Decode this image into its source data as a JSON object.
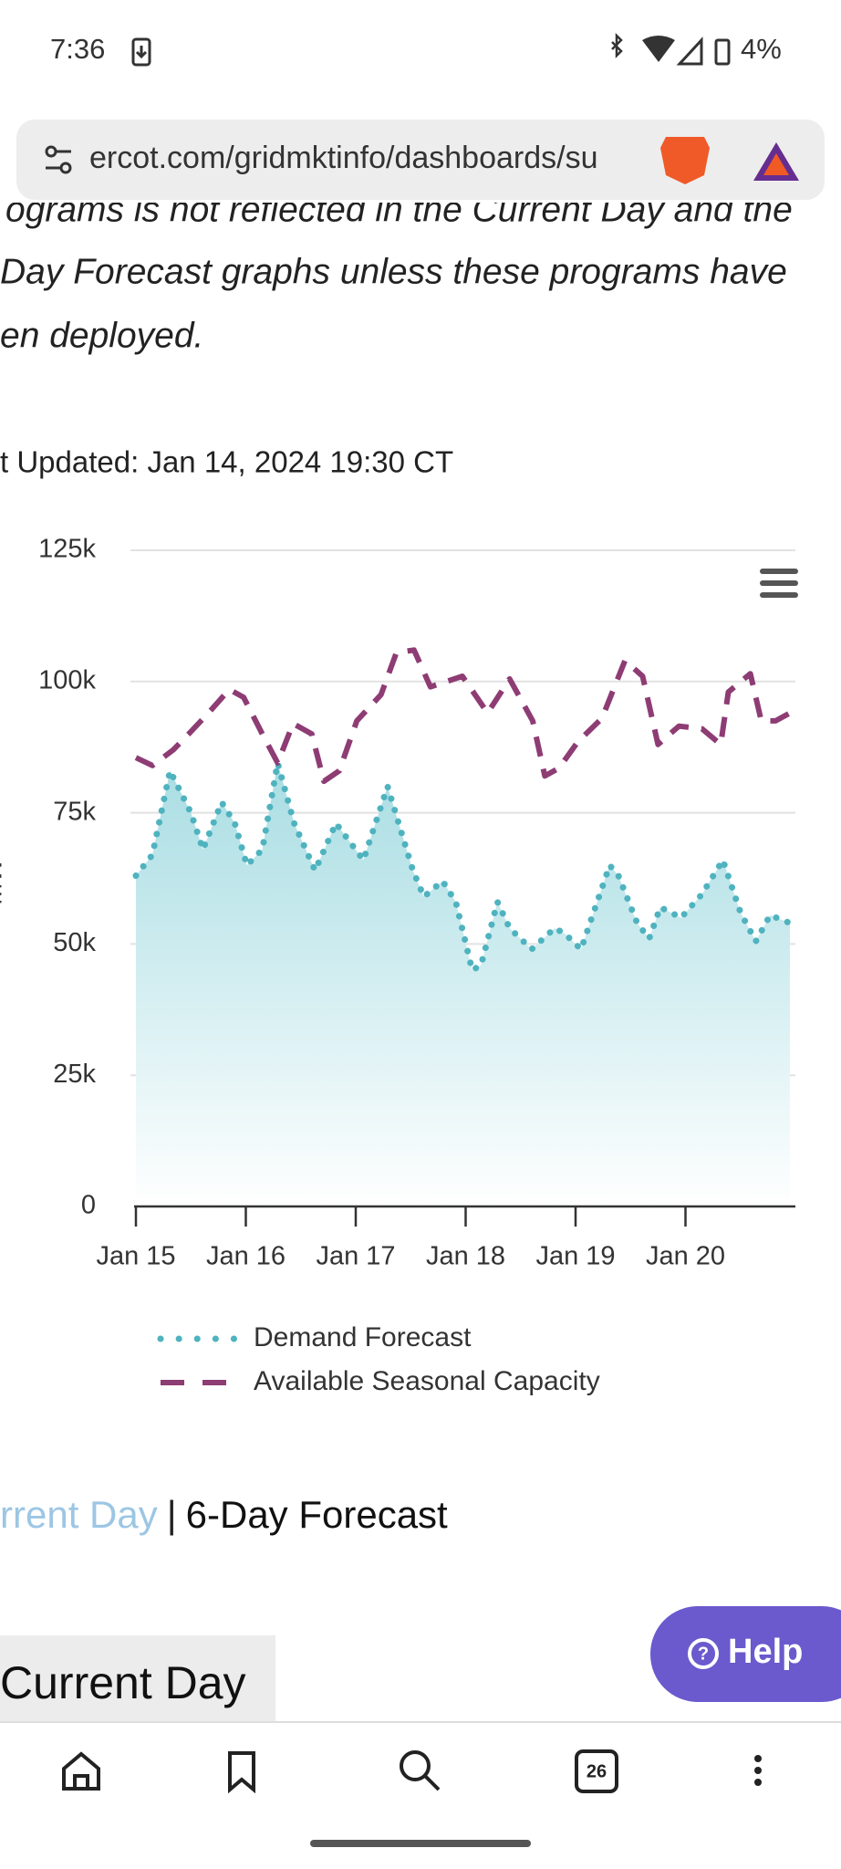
{
  "status_bar": {
    "time": "7:36",
    "battery": "4%"
  },
  "browser": {
    "url": "ercot.com/gridmktinfo/dashboards/su"
  },
  "article": {
    "lines": [
      "ograms is not reflected in the Current Day and the",
      "Day Forecast graphs unless these programs have",
      "en deployed."
    ],
    "last_updated": "t Updated: Jan 14, 2024 19:30 CT"
  },
  "chart_data": {
    "type": "line",
    "ylabel": "MW",
    "xlim": [
      0,
      6
    ],
    "xticks": [
      {
        "value": 0,
        "label": "Jan 15"
      },
      {
        "value": 1,
        "label": "Jan 16"
      },
      {
        "value": 2,
        "label": "Jan 17"
      },
      {
        "value": 3,
        "label": "Jan 18"
      },
      {
        "value": 4,
        "label": "Jan 19"
      },
      {
        "value": 5,
        "label": "Jan 20"
      }
    ],
    "ylim": [
      0,
      125000
    ],
    "yticks": [
      0,
      {
        "value": 25000,
        "label": "25k"
      },
      {
        "value": 50000,
        "label": "50k"
      },
      {
        "value": 75000,
        "label": "75k"
      },
      {
        "value": 100000,
        "label": "100k"
      },
      {
        "value": 125000,
        "label": "125k"
      }
    ],
    "grid": true,
    "series": [
      {
        "name": "Demand Forecast",
        "color": "#4fb3bf",
        "style": "dotted",
        "area": true,
        "x": [
          0,
          0.15,
          0.31,
          0.5,
          0.61,
          0.78,
          0.9,
          1.01,
          1.15,
          1.29,
          1.44,
          1.63,
          1.82,
          2.07,
          2.29,
          2.52,
          2.62,
          2.79,
          2.91,
          3.06,
          3.14,
          3.29,
          3.4,
          3.6,
          3.81,
          3.9,
          4.05,
          4.31,
          4.39,
          4.56,
          4.67,
          4.77,
          4.96,
          5.15,
          5.34,
          5.5,
          5.64,
          5.77,
          5.95
        ],
        "values": [
          63000,
          67000,
          83000,
          75000,
          68000,
          77000,
          73000,
          65000,
          68000,
          84500,
          73000,
          64000,
          73000,
          66000,
          80000,
          64000,
          59000,
          62000,
          58000,
          45000,
          46000,
          58000,
          53000,
          49000,
          53000,
          52000,
          49000,
          65000,
          63000,
          54000,
          51000,
          57000,
          55000,
          59500,
          66000,
          56000,
          50500,
          55500,
          54000
        ]
      },
      {
        "name": "Available Seasonal Capacity",
        "color": "#8e3c74",
        "style": "dashed",
        "x": [
          0,
          0.15,
          0.34,
          0.48,
          0.66,
          0.85,
          0.98,
          1.15,
          1.29,
          1.43,
          1.6,
          1.71,
          1.85,
          2.01,
          2.23,
          2.37,
          2.53,
          2.68,
          2.97,
          3.2,
          3.4,
          3.61,
          3.72,
          3.85,
          4.02,
          4.24,
          4.45,
          4.61,
          4.75,
          4.94,
          5.15,
          5.32,
          5.39,
          5.59,
          5.69,
          5.82,
          5.95
        ],
        "values": [
          85500,
          84000,
          87000,
          90000,
          94000,
          98500,
          97000,
          90000,
          84500,
          92000,
          90000,
          81000,
          83000,
          92500,
          97500,
          105500,
          106000,
          99000,
          101000,
          94000,
          100500,
          92500,
          82000,
          83500,
          88500,
          93000,
          104000,
          101000,
          88000,
          91500,
          91000,
          88000,
          98000,
          101500,
          92500,
          92500,
          94000
        ]
      }
    ]
  },
  "tabs": {
    "current": "rrent Day",
    "separator": "|",
    "forecast": "6-Day Forecast"
  },
  "section_tab": "Current Day",
  "help": "Help",
  "nav": {
    "tab_count": "26"
  }
}
